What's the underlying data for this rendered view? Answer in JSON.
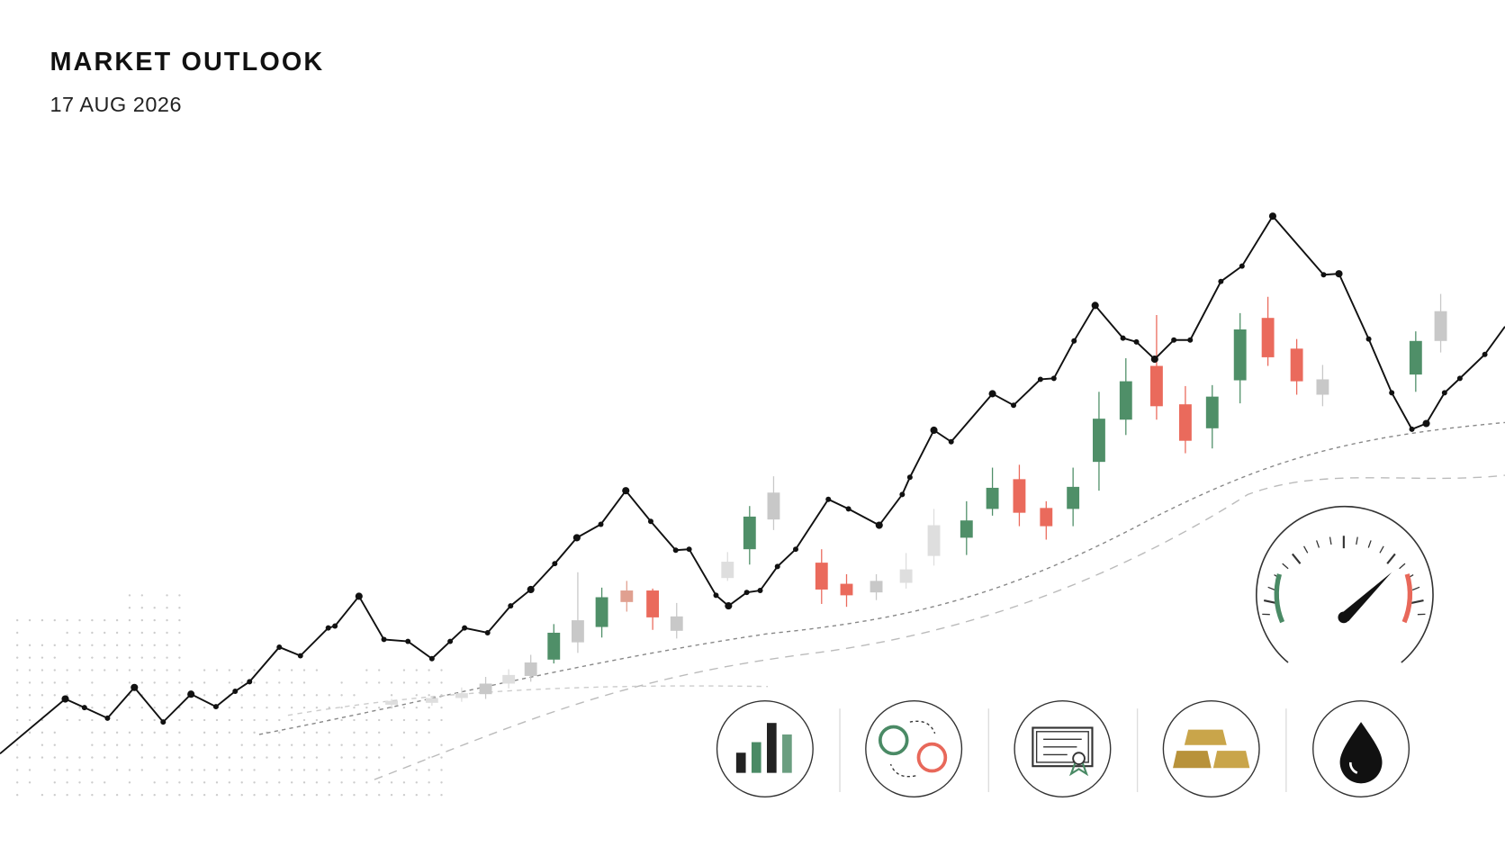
{
  "header": {
    "title": "MARKET OUTLOOK",
    "date": "17 AUG 2026"
  }
}
